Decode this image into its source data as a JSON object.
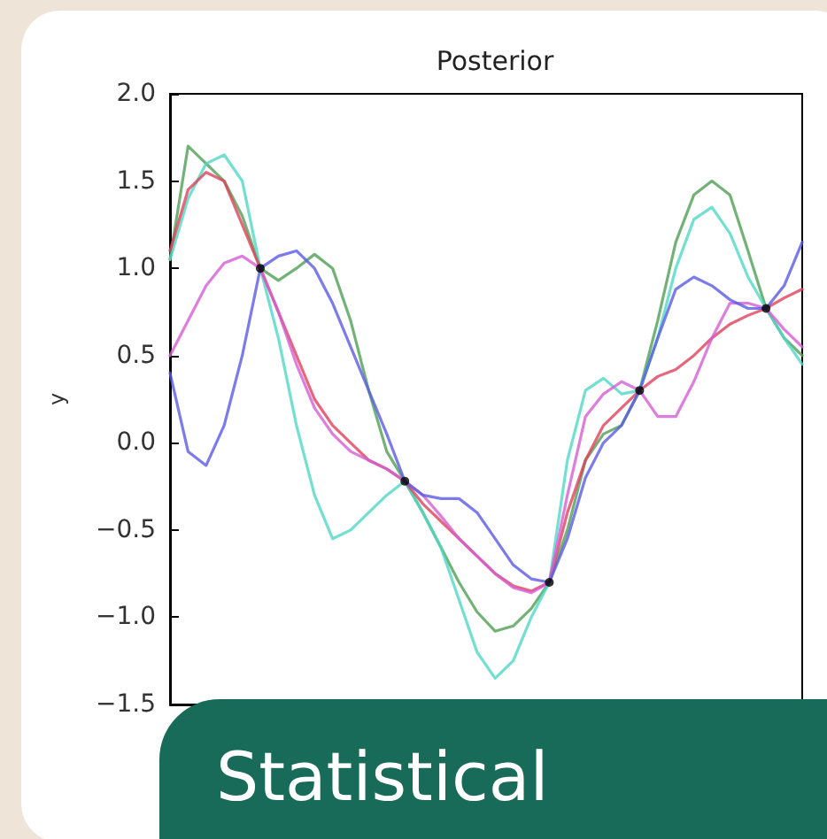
{
  "chart_data": {
    "type": "line",
    "title": "Posterior",
    "ylabel": "y",
    "annotations": [
      "Statistical"
    ],
    "categories": [
      null,
      null,
      null,
      null,
      null,
      null,
      null,
      null,
      null,
      null,
      null,
      null,
      null,
      null,
      null,
      null,
      null,
      null,
      null,
      null,
      null,
      null,
      null,
      null,
      null,
      null,
      null,
      null,
      null,
      null,
      null,
      null,
      null,
      null,
      null,
      null
    ],
    "ylim": [
      -1.5,
      2.0
    ],
    "yticks": [
      {
        "value": -1.5,
        "label": "−1.5"
      },
      {
        "value": -1.0,
        "label": "−1.0"
      },
      {
        "value": -0.5,
        "label": "−0.5"
      },
      {
        "value": 0.0,
        "label": "0.0"
      },
      {
        "value": 0.5,
        "label": "0.5"
      },
      {
        "value": 1.0,
        "label": "1.0"
      },
      {
        "value": 1.5,
        "label": "1.5"
      },
      {
        "value": 2.0,
        "label": "2.0"
      }
    ],
    "grid": false,
    "marker": "none",
    "line_style": "solid",
    "tick_labels": "y",
    "series": [
      {
        "color": "#4f9f55",
        "values": [
          1.05,
          1.7,
          1.6,
          1.5,
          1.3,
          1.0,
          0.93,
          1.0,
          1.08,
          1.0,
          0.7,
          0.3,
          -0.05,
          -0.22,
          -0.4,
          -0.6,
          -0.8,
          -0.97,
          -1.08,
          -1.05,
          -0.95,
          -0.8,
          -0.5,
          -0.1,
          0.05,
          0.1,
          0.3,
          0.7,
          1.15,
          1.42,
          1.5,
          1.42,
          1.1,
          0.77,
          0.6,
          0.5
        ]
      },
      {
        "color": "#4fd8c4",
        "values": [
          1.05,
          1.4,
          1.6,
          1.65,
          1.5,
          1.0,
          0.6,
          0.1,
          -0.3,
          -0.55,
          -0.5,
          -0.4,
          -0.3,
          -0.22,
          -0.4,
          -0.6,
          -0.9,
          -1.2,
          -1.35,
          -1.25,
          -1.0,
          -0.8,
          -0.1,
          0.3,
          0.37,
          0.28,
          0.3,
          0.6,
          1.0,
          1.28,
          1.35,
          1.2,
          0.95,
          0.77,
          0.6,
          0.45
        ]
      },
      {
        "color": "#e0405a",
        "values": [
          1.1,
          1.45,
          1.55,
          1.5,
          1.25,
          1.0,
          0.75,
          0.5,
          0.25,
          0.1,
          0.0,
          -0.1,
          -0.15,
          -0.22,
          -0.35,
          -0.45,
          -0.55,
          -0.65,
          -0.75,
          -0.82,
          -0.85,
          -0.8,
          -0.4,
          -0.1,
          0.1,
          0.2,
          0.3,
          0.38,
          0.42,
          0.5,
          0.6,
          0.68,
          0.73,
          0.77,
          0.83,
          0.88
        ]
      },
      {
        "color": "#d45ed4",
        "values": [
          0.5,
          0.7,
          0.9,
          1.03,
          1.07,
          1.0,
          0.75,
          0.45,
          0.2,
          0.05,
          -0.05,
          -0.1,
          -0.15,
          -0.22,
          -0.3,
          -0.42,
          -0.55,
          -0.65,
          -0.75,
          -0.83,
          -0.86,
          -0.8,
          -0.3,
          0.15,
          0.28,
          0.35,
          0.3,
          0.15,
          0.15,
          0.35,
          0.6,
          0.8,
          0.8,
          0.77,
          0.65,
          0.55
        ]
      },
      {
        "color": "#5a5ae6",
        "values": [
          0.4,
          -0.05,
          -0.13,
          0.1,
          0.5,
          1.0,
          1.07,
          1.1,
          1.0,
          0.8,
          0.55,
          0.3,
          0.05,
          -0.22,
          -0.3,
          -0.32,
          -0.32,
          -0.4,
          -0.55,
          -0.7,
          -0.78,
          -0.8,
          -0.55,
          -0.2,
          0.0,
          0.1,
          0.3,
          0.6,
          0.88,
          0.95,
          0.9,
          0.82,
          0.77,
          0.77,
          0.9,
          1.15
        ]
      },
      {
        "type": "scatter",
        "color": "#000000",
        "marker": "circle",
        "values": [
          null,
          null,
          null,
          null,
          null,
          1.0,
          null,
          null,
          null,
          null,
          null,
          null,
          null,
          -0.22,
          null,
          null,
          null,
          null,
          null,
          null,
          null,
          -0.8,
          null,
          null,
          null,
          null,
          0.3,
          null,
          null,
          null,
          null,
          null,
          null,
          0.77,
          null,
          null
        ]
      }
    ]
  }
}
